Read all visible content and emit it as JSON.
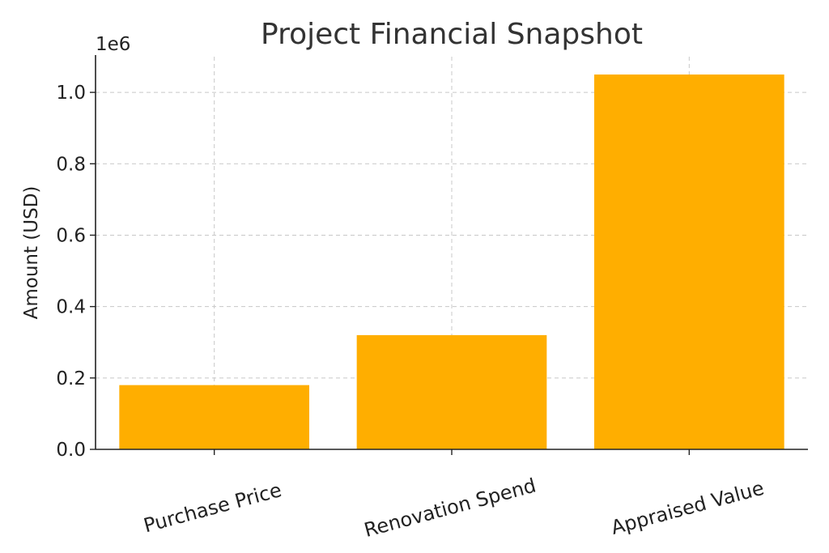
{
  "chart_data": {
    "type": "bar",
    "title": "Project Financial Snapshot",
    "xlabel": "",
    "ylabel": "Amount (USD)",
    "offset_label": "1e6",
    "categories": [
      "Purchase Price",
      "Renovation Spend",
      "Appraised Value"
    ],
    "values": [
      180000,
      320000,
      1050000
    ],
    "bar_color": "#FFAE00",
    "ylim": [
      0,
      1100000
    ],
    "yticks": [
      0,
      200000,
      400000,
      600000,
      800000,
      1000000
    ],
    "ytick_labels": [
      "0.0",
      "0.2",
      "0.4",
      "0.6",
      "0.8",
      "1.0"
    ],
    "grid": true,
    "grid_style": "dashed"
  }
}
